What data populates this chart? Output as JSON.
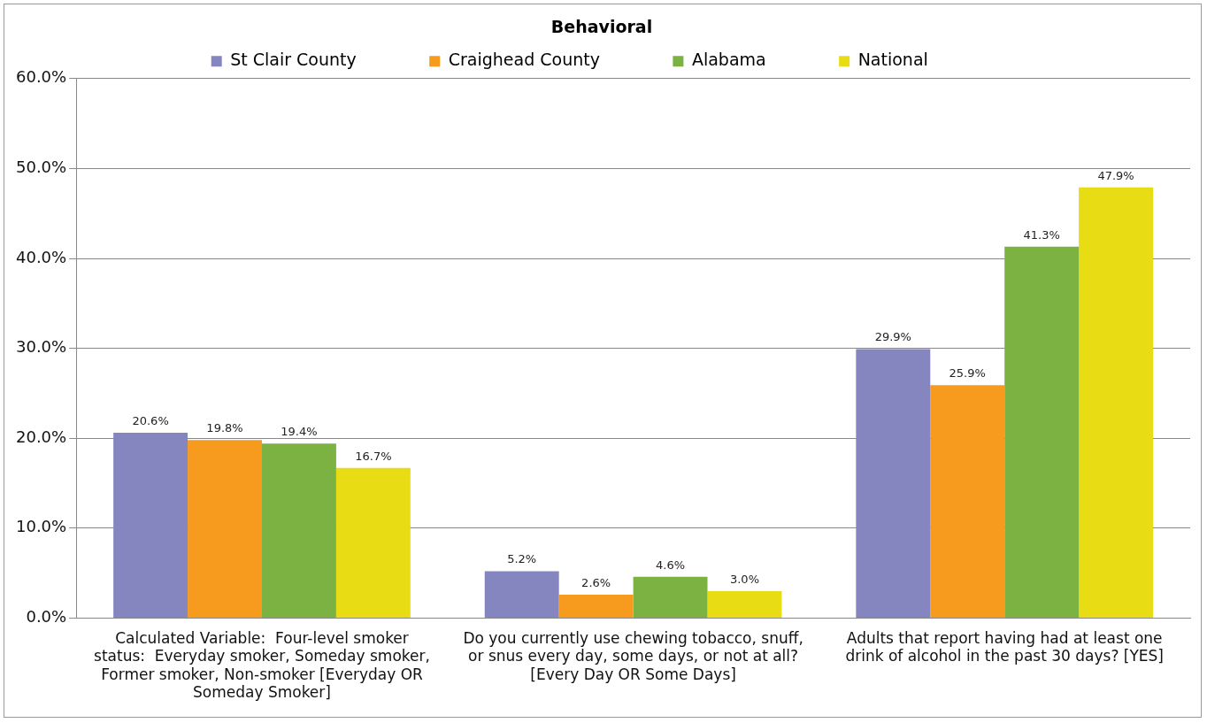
{
  "chart_data": {
    "type": "bar",
    "title": "Behavioral",
    "categories": [
      "Calculated Variable:  Four-level smoker status:  Everyday smoker, Someday smoker, Former smoker, Non-smoker [Everyday OR Someday Smoker]",
      "Do you currently use chewing tobacco, snuff, or snus every day, some days, or not at all? [Every Day OR Some Days]",
      "Adults that report having had at least one drink of alcohol in the past 30 days? [YES]"
    ],
    "series": [
      {
        "name": "St Clair County",
        "color": "#8585c0",
        "values": [
          20.6,
          5.2,
          29.9
        ],
        "value_labels": [
          "20.6%",
          "5.2%",
          "29.9%"
        ]
      },
      {
        "name": "Craighead County",
        "color": "#f79b1e",
        "values": [
          19.8,
          2.6,
          25.9
        ],
        "value_labels": [
          "19.8%",
          "2.6%",
          "25.9%"
        ]
      },
      {
        "name": "Alabama",
        "color": "#7bb241",
        "values": [
          19.4,
          4.6,
          41.3
        ],
        "value_labels": [
          "19.4%",
          "4.6%",
          "41.3%"
        ]
      },
      {
        "name": "National",
        "color": "#e8dc14",
        "values": [
          16.7,
          3.0,
          47.9
        ],
        "value_labels": [
          "16.7%",
          "3.0%",
          "47.9%"
        ]
      }
    ],
    "ylim": [
      0,
      60
    ],
    "yticks": [
      {
        "value": 0,
        "label": "0.0%"
      },
      {
        "value": 10,
        "label": "10.0%"
      },
      {
        "value": 20,
        "label": "20.0%"
      },
      {
        "value": 30,
        "label": "30.0%"
      },
      {
        "value": 40,
        "label": "40.0%"
      },
      {
        "value": 50,
        "label": "50.0%"
      },
      {
        "value": 60,
        "label": "60.0%"
      }
    ],
    "grid": "y",
    "legend": "top"
  }
}
